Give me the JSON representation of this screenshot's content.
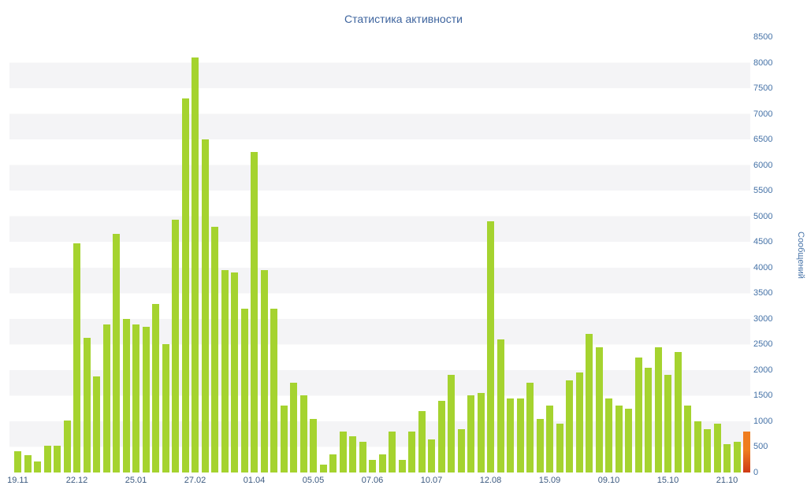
{
  "title": "Статистика активности",
  "chart_data": {
    "type": "bar",
    "title": "Статистика активности",
    "xlabel": "",
    "ylabel": "Сообщений",
    "ylim": [
      0,
      8500
    ],
    "y_tick_step": 500,
    "grid": "horizontal-stripes",
    "legend": "none",
    "x_tick_labels": [
      "19.11",
      "22.12",
      "25.01",
      "27.02",
      "01.04",
      "05.05",
      "07.06",
      "10.07",
      "12.08",
      "15.09",
      "09.10",
      "15.10",
      "21.10"
    ],
    "x_tick_every": 6,
    "values": [
      420,
      340,
      215,
      520,
      520,
      1015,
      4470,
      2630,
      1880,
      2890,
      4650,
      3000,
      2890,
      2850,
      3290,
      2500,
      4930,
      7300,
      8100,
      6500,
      4800,
      3950,
      3900,
      3200,
      6250,
      3950,
      3200,
      1300,
      1750,
      1500,
      1050,
      150,
      350,
      800,
      700,
      600,
      250,
      350,
      800,
      250,
      800,
      1200,
      650,
      1400,
      1900,
      850,
      1500,
      1550,
      4900,
      2600,
      1450,
      1450,
      1750,
      1050,
      1300,
      950,
      1800,
      1950,
      2700,
      2450,
      1450,
      1300,
      1250,
      2250,
      2050,
      2450,
      1900,
      2350,
      1300,
      1000,
      850,
      950,
      550,
      600,
      800
    ],
    "highlight_last": true
  },
  "colors": {
    "bar": "#a5d32f",
    "highlight_top": "#ef7d1f",
    "highlight_bottom": "#ce3a15",
    "title": "#3e649e",
    "axis_labels": "#4572a7",
    "x_labels": "#3c5a80",
    "stripe": "#f4f4f6"
  }
}
